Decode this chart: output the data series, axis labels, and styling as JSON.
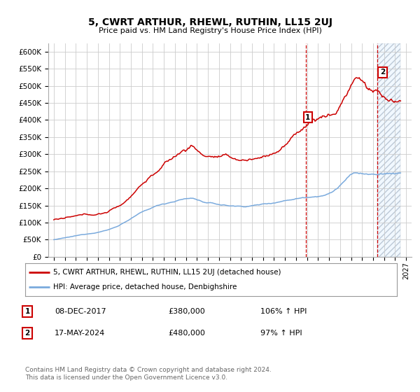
{
  "title": "5, CWRT ARTHUR, RHEWL, RUTHIN, LL15 2UJ",
  "subtitle": "Price paid vs. HM Land Registry's House Price Index (HPI)",
  "ylim": [
    0,
    625000
  ],
  "yticks": [
    0,
    50000,
    100000,
    150000,
    200000,
    250000,
    300000,
    350000,
    400000,
    450000,
    500000,
    550000,
    600000
  ],
  "ytick_labels": [
    "£0",
    "£50K",
    "£100K",
    "£150K",
    "£200K",
    "£250K",
    "£300K",
    "£350K",
    "£400K",
    "£450K",
    "£500K",
    "£550K",
    "£600K"
  ],
  "red_line_color": "#cc0000",
  "blue_line_color": "#7aaadd",
  "grid_color": "#cccccc",
  "background_color": "#ffffff",
  "legend_label_red": "5, CWRT ARTHUR, RHEWL, RUTHIN, LL15 2UJ (detached house)",
  "legend_label_blue": "HPI: Average price, detached house, Denbighshire",
  "annotation1_date": "08-DEC-2017",
  "annotation1_price": "£380,000",
  "annotation1_hpi": "106% ↑ HPI",
  "annotation2_date": "17-MAY-2024",
  "annotation2_price": "£480,000",
  "annotation2_hpi": "97% ↑ HPI",
  "sale1_year": 2017.93,
  "sale1_price": 380000,
  "sale2_year": 2024.37,
  "sale2_price": 480000,
  "copyright_text": "Contains HM Land Registry data © Crown copyright and database right 2024.\nThis data is licensed under the Open Government Licence v3.0.",
  "xmin": 1994.5,
  "xmax": 2027.5
}
